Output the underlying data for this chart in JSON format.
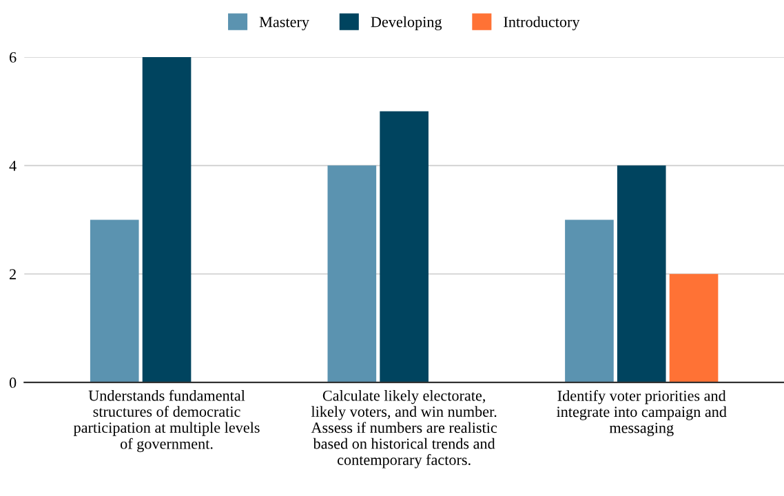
{
  "chart_data": {
    "type": "bar",
    "categories": [
      "Understands fundamental\nstructures of democratic\nparticipation at multiple levels\nof government.",
      "Calculate likely electorate,\nlikely voters, and win number.\nAssess if numbers are realistic\nbased on historical trends and\ncontemporary factors.",
      "Identify voter priorities and\nintegrate into campaign and\nmessaging"
    ],
    "series": [
      {
        "name": "Mastery",
        "color": "#5b93b0",
        "values": [
          3,
          4,
          3
        ]
      },
      {
        "name": "Developing",
        "color": "#00445f",
        "values": [
          6,
          5,
          4
        ]
      },
      {
        "name": "Introductory",
        "color": "#ff7235",
        "values": [
          null,
          null,
          2
        ]
      }
    ],
    "ylim": [
      0,
      6
    ],
    "yticks": [
      0,
      2,
      4,
      6
    ],
    "grid": "y",
    "legend": "top"
  }
}
